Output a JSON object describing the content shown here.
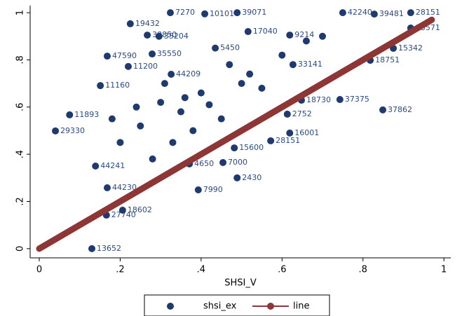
{
  "chart_data": {
    "type": "scatter",
    "xlabel": "SHSI_V",
    "xlim": [
      -0.0225,
      1.017
    ],
    "ylim": [
      -0.039,
      1.03
    ],
    "xticks": [
      0,
      {
        "value": 0.2,
        "label": ".2"
      },
      {
        "value": 0.4,
        "label": ".4"
      },
      {
        "value": 0.6,
        "label": ".6"
      },
      {
        "value": 0.8,
        "label": ".8"
      },
      1
    ],
    "yticks": [
      0,
      {
        "value": 0.2,
        "label": ".2"
      },
      {
        "value": 0.4,
        "label": ".4"
      },
      {
        "value": 0.6,
        "label": ".6"
      },
      {
        "value": 0.8,
        "label": ".8"
      },
      1
    ],
    "series": [
      {
        "name": "shsi_ex",
        "kind": "scatter",
        "color": "#1f3a6e",
        "x": [
          0.324,
          0.409,
          0.489,
          0.225,
          0.267,
          0.296,
          0.516,
          0.619,
          0.435,
          0.168,
          0.279,
          0.22,
          0.151,
          0.326,
          0.075,
          0.04,
          0.648,
          0.743,
          0.849,
          0.572,
          0.489,
          0.454,
          0.393,
          0.139,
          0.168,
          0.166,
          0.206,
          0.13,
          0.75,
          0.828,
          0.918,
          0.918,
          0.875,
          0.818,
          0.627,
          0.371,
          0.619,
          0.613,
          0.482,
          0.3,
          0.35,
          0.4,
          0.45,
          0.5,
          0.55,
          0.25,
          0.2,
          0.38,
          0.42,
          0.33,
          0.28,
          0.47,
          0.52,
          0.6,
          0.66,
          0.7,
          0.24,
          0.31,
          0.36,
          0.18
        ],
        "values": [
          1.0,
          0.995,
          1.0,
          0.953,
          0.905,
          0.9,
          0.92,
          0.905,
          0.85,
          0.816,
          0.825,
          0.772,
          0.691,
          0.739,
          0.567,
          0.499,
          0.629,
          0.632,
          0.588,
          0.457,
          0.3,
          0.365,
          0.249,
          0.35,
          0.258,
          0.142,
          0.163,
          0.0,
          1.0,
          0.994,
          1.0,
          0.935,
          0.849,
          0.798,
          0.78,
          0.359,
          0.49,
          0.57,
          0.427,
          0.62,
          0.58,
          0.66,
          0.55,
          0.7,
          0.68,
          0.52,
          0.45,
          0.5,
          0.61,
          0.45,
          0.38,
          0.78,
          0.74,
          0.82,
          0.88,
          0.9,
          0.6,
          0.7,
          0.64,
          0.55
        ],
        "labels": [
          "7270",
          "10101",
          "39071",
          "19432",
          "38850",
          "35204",
          "17040",
          "9214",
          "5450",
          "47590",
          "35550",
          "11200",
          "11160",
          "44209",
          "11893",
          "29330",
          "18730",
          "37375",
          "37862",
          "28151",
          "2430",
          "7000",
          "7990",
          "44241",
          "44230",
          "27740",
          "18602",
          "13652",
          "42240",
          "39481",
          "28151",
          "23571",
          "15342",
          "18751",
          "33141",
          "4650",
          "16001",
          "2752",
          "15600",
          null,
          null,
          null,
          null,
          null,
          null,
          null,
          null,
          null,
          null,
          null,
          null,
          null,
          null,
          null,
          null,
          null,
          null,
          null,
          null,
          null
        ]
      },
      {
        "name": "line",
        "kind": "line",
        "color": "#8e3535",
        "x": [
          0,
          0.97
        ],
        "values": [
          0,
          0.97
        ]
      }
    ]
  }
}
